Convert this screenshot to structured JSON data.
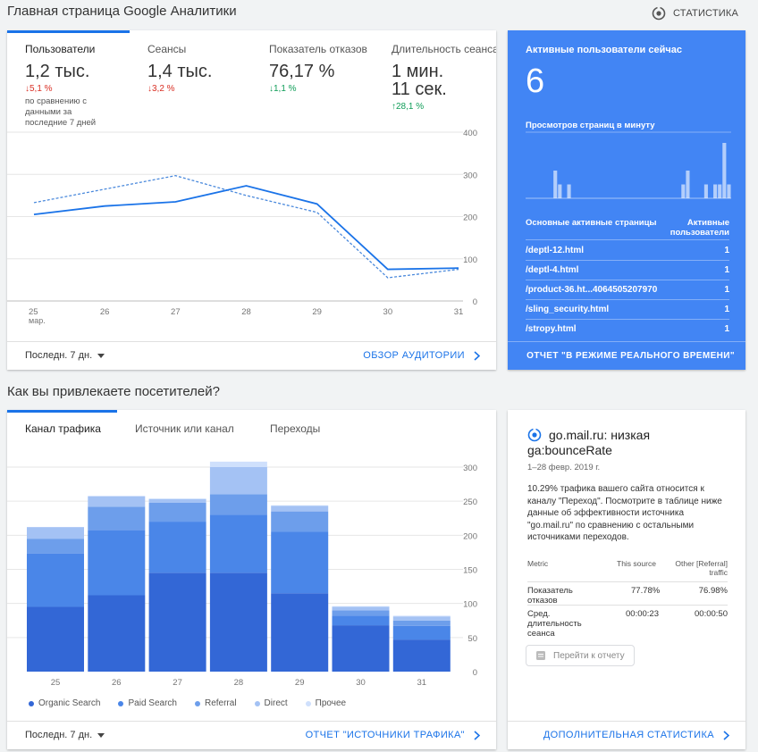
{
  "page": {
    "title": "Главная страница Google Аналитики",
    "top_link": "СТАТИСТИКА",
    "section_title": "Как вы привлекаете посетителей?"
  },
  "audience": {
    "metrics": [
      {
        "label": "Пользователи",
        "value": "1,2 тыс.",
        "delta": "↓5,1 %",
        "trend": "down",
        "note": "по сравнению с данными за последние 7 дней"
      },
      {
        "label": "Сеансы",
        "value": "1,4 тыс.",
        "delta": "↓3,2 %",
        "trend": "down"
      },
      {
        "label": "Показатель отказов",
        "value": "76,17 %",
        "delta": "↓1,1 %",
        "trend": "down-good"
      },
      {
        "label": "Длительность сеанса",
        "value_line1": "1 мин.",
        "value_line2": "11 сек.",
        "delta": "↑28,1 %",
        "trend": "up-good"
      }
    ],
    "date_range": "Последн. 7 дн.",
    "link": "ОБЗОР АУДИТОРИИ"
  },
  "audience_chart": {
    "type": "line",
    "x": [
      "25",
      "26",
      "27",
      "28",
      "29",
      "30",
      "31"
    ],
    "x_sub": [
      "мар.",
      "",
      "",
      "",
      "",
      "",
      ""
    ],
    "y_ticks": [
      "400",
      "300",
      "200",
      "100",
      "0"
    ],
    "ylim": [
      0,
      400
    ],
    "series": [
      {
        "values": [
          205,
          225,
          235,
          273,
          230,
          75,
          78
        ],
        "color": "#1a73e8",
        "style": "solid"
      },
      {
        "values": [
          233,
          265,
          297,
          250,
          210,
          55,
          75
        ],
        "color": "#4a89dc",
        "style": "dashed"
      }
    ]
  },
  "realtime": {
    "title": "Активные пользователи сейчас",
    "count": "6",
    "ppm_label": "Просмотров страниц в минуту",
    "ppm_values": [
      0,
      0,
      0,
      0,
      0,
      0,
      2,
      1,
      0,
      1,
      0,
      0,
      0,
      0,
      0,
      0,
      0,
      0,
      0,
      0,
      0,
      0,
      0,
      0,
      0,
      0,
      0,
      0,
      0,
      0,
      0,
      0,
      0,
      0,
      1,
      2,
      0,
      0,
      0,
      1,
      0,
      1,
      1,
      4,
      1
    ],
    "pages_header": "Основные активные страницы",
    "users_header_line1": "Активные",
    "users_header_line2": "пользователи",
    "rows": [
      {
        "page": "/deptl-12.html",
        "users": "1"
      },
      {
        "page": "/deptl-4.html",
        "users": "1"
      },
      {
        "page": "/product-36.ht...4064505207970",
        "users": "1"
      },
      {
        "page": "/sling_security.html",
        "users": "1"
      },
      {
        "page": "/stropy.html",
        "users": "1"
      }
    ],
    "link": "ОТЧЕТ \"В РЕЖИМЕ РЕАЛЬНОГО ВРЕМЕНИ\""
  },
  "acquisition": {
    "tabs": [
      "Канал трафика",
      "Источник или канал",
      "Переходы"
    ],
    "date_range": "Последн. 7 дн.",
    "link": "ОТЧЕТ \"ИСТОЧНИКИ ТРАФИКА\""
  },
  "acquisition_chart": {
    "type": "bar",
    "stacked": true,
    "categories": [
      "25",
      "26",
      "27",
      "28",
      "29",
      "30",
      "31"
    ],
    "category_sub": [
      "мар.",
      "",
      "",
      "",
      "",
      "",
      ""
    ],
    "y_ticks": [
      "300",
      "250",
      "200",
      "150",
      "100",
      "50",
      "0"
    ],
    "ylim": [
      0,
      300
    ],
    "series": [
      {
        "name": "Organic Search",
        "color": "#3367d6",
        "values": [
          95,
          112,
          145,
          145,
          115,
          68,
          47
        ]
      },
      {
        "name": "Paid Search",
        "color": "#4a86e8",
        "values": [
          78,
          95,
          75,
          85,
          90,
          14,
          20
        ]
      },
      {
        "name": "Referral",
        "color": "#6d9eeb",
        "values": [
          22,
          35,
          28,
          30,
          30,
          8,
          8
        ]
      },
      {
        "name": "Direct",
        "color": "#a4c2f4",
        "values": [
          17,
          15,
          5,
          40,
          8,
          5,
          6
        ]
      },
      {
        "name": "Прочее",
        "color": "#cfe0fc",
        "values": [
          0,
          1,
          1,
          8,
          1,
          1,
          1
        ]
      }
    ]
  },
  "insight": {
    "title_line1": "go.mail.ru: низкая",
    "title_line2": "ga:bounceRate",
    "date": "1–28 февр. 2019 г.",
    "body": "10.29% трафика вашего сайта относится к каналу \"Переход\". Посмотрите в таблице ниже данные об эффективности источника \"go.mail.ru\" по сравнению с остальными источниками переходов.",
    "col_metric": "Metric",
    "col_source": "This source",
    "col_other_line1": "Other [Referral]",
    "col_other_line2": "traffic",
    "rows": [
      {
        "metric": "Показатель отказов",
        "source": "77.78%",
        "other": "76.98%"
      },
      {
        "metric": "Сред. длительность сеанса",
        "source": "00:00:23",
        "other": "00:00:50"
      }
    ],
    "button": "Перейти к отчету",
    "link": "ДОПОЛНИТЕЛЬНАЯ СТАТИСТИКА"
  }
}
